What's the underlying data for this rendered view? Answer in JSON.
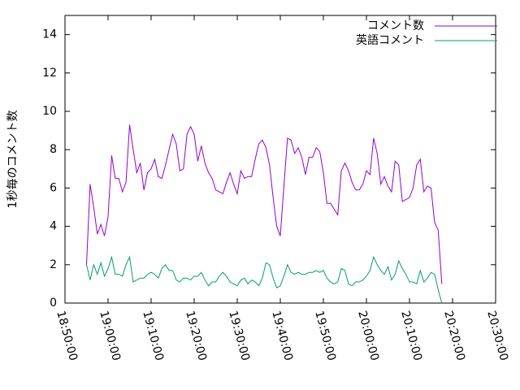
{
  "chart_data": {
    "type": "line",
    "ylabel": "1秒毎のコメント数",
    "x": [
      "18:55:00",
      "18:55:50",
      "18:56:40",
      "18:57:30",
      "18:58:20",
      "18:59:10",
      "19:00:00",
      "19:00:50",
      "19:01:40",
      "19:02:30",
      "19:03:20",
      "19:04:10",
      "19:05:00",
      "19:05:50",
      "19:06:40",
      "19:07:30",
      "19:08:20",
      "19:09:10",
      "19:10:00",
      "19:10:50",
      "19:11:40",
      "19:12:30",
      "19:13:20",
      "19:14:10",
      "19:15:00",
      "19:15:50",
      "19:16:40",
      "19:17:30",
      "19:18:20",
      "19:19:10",
      "19:20:00",
      "19:20:50",
      "19:21:40",
      "19:22:30",
      "19:23:20",
      "19:24:10",
      "19:25:00",
      "19:25:50",
      "19:26:40",
      "19:27:30",
      "19:28:20",
      "19:29:10",
      "19:30:00",
      "19:30:50",
      "19:31:40",
      "19:32:30",
      "19:33:20",
      "19:34:10",
      "19:35:00",
      "19:35:50",
      "19:36:40",
      "19:37:30",
      "19:38:20",
      "19:39:10",
      "19:40:00",
      "19:40:50",
      "19:41:40",
      "19:42:30",
      "19:43:20",
      "19:44:10",
      "19:45:00",
      "19:45:50",
      "19:46:40",
      "19:47:30",
      "19:48:20",
      "19:49:10",
      "19:50:00",
      "19:50:50",
      "19:51:40",
      "19:52:30",
      "19:53:20",
      "19:54:10",
      "19:55:00",
      "19:55:50",
      "19:56:40",
      "19:57:30",
      "19:58:20",
      "19:59:10",
      "20:00:00",
      "20:00:50",
      "20:01:40",
      "20:02:30",
      "20:03:20",
      "20:04:10",
      "20:05:00",
      "20:05:50",
      "20:06:40",
      "20:07:30",
      "20:08:20",
      "20:09:10",
      "20:10:00",
      "20:10:50",
      "20:11:40",
      "20:12:30",
      "20:13:20",
      "20:14:10",
      "20:15:00",
      "20:15:50",
      "20:16:40",
      "20:17:30"
    ],
    "series": [
      {
        "name": "コメント数",
        "color": "#9400d3",
        "values": [
          2,
          6.2,
          5.0,
          3.6,
          4.1,
          3.5,
          4.5,
          7.7,
          6.5,
          6.5,
          5.8,
          6.3,
          9.3,
          8.0,
          6.8,
          7.3,
          5.9,
          6.8,
          7.0,
          7.5,
          6.6,
          6.5,
          7.2,
          8.0,
          8.8,
          8.3,
          6.9,
          7.0,
          8.8,
          9.2,
          8.8,
          7.4,
          8.2,
          7.3,
          6.8,
          6.5,
          5.9,
          5.8,
          5.7,
          6.3,
          6.8,
          6.2,
          5.7,
          6.9,
          6.5,
          6.6,
          6.6,
          7.5,
          8.3,
          8.5,
          8.1,
          7.2,
          5.5,
          4.0,
          3.5,
          6.1,
          8.6,
          8.5,
          7.8,
          8.1,
          7.6,
          6.7,
          7.6,
          7.6,
          8.1,
          7.9,
          6.8,
          5.2,
          5.2,
          4.9,
          4.6,
          6.9,
          7.3,
          6.9,
          6.3,
          5.9,
          5.9,
          6.2,
          6.9,
          6.7,
          8.6,
          7.8,
          6.2,
          6.6,
          6.1,
          5.8,
          7.4,
          7.2,
          5.3,
          5.4,
          5.5,
          6.0,
          7.2,
          7.5,
          5.8,
          6.1,
          6.0,
          4.2,
          3.8,
          1.0
        ]
      },
      {
        "name": "英語コメント",
        "color": "#009e73",
        "values": [
          2.0,
          1.2,
          2.0,
          1.5,
          2.1,
          1.4,
          1.8,
          2.4,
          1.5,
          1.5,
          1.4,
          2.0,
          2.4,
          1.1,
          1.2,
          1.3,
          1.3,
          1.5,
          1.6,
          1.5,
          1.3,
          1.8,
          2.0,
          1.7,
          1.7,
          1.2,
          1.1,
          1.3,
          1.3,
          1.2,
          1.4,
          1.4,
          1.6,
          1.2,
          0.9,
          1.1,
          1.1,
          1.4,
          1.6,
          1.4,
          1.1,
          1.0,
          0.9,
          1.2,
          1.3,
          1.0,
          1.2,
          1.1,
          0.9,
          1.3,
          2.1,
          2.0,
          1.3,
          0.8,
          0.9,
          1.4,
          2.0,
          1.6,
          1.5,
          1.6,
          1.5,
          1.5,
          1.6,
          1.6,
          1.7,
          1.6,
          1.7,
          1.3,
          1.1,
          1.0,
          1.1,
          1.8,
          1.7,
          1.0,
          0.9,
          1.1,
          1.1,
          1.2,
          1.4,
          1.7,
          2.4,
          2.0,
          1.7,
          1.5,
          1.9,
          1.2,
          1.5,
          2.2,
          1.8,
          1.5,
          1.1,
          1.1,
          1.0,
          1.7,
          1.1,
          1.3,
          1.6,
          1.5,
          0.7,
          0.0
        ]
      }
    ],
    "xlim": [
      "18:50:00",
      "20:30:00"
    ],
    "xticks": [
      "18:50:00",
      "19:00:00",
      "19:10:00",
      "19:20:00",
      "19:30:00",
      "19:40:00",
      "19:50:00",
      "20:00:00",
      "20:10:00",
      "20:20:00",
      "20:30:00"
    ],
    "ylim": [
      0,
      15
    ],
    "yticks": [
      0,
      2,
      4,
      6,
      8,
      10,
      12,
      14
    ],
    "legend": "top-right"
  }
}
